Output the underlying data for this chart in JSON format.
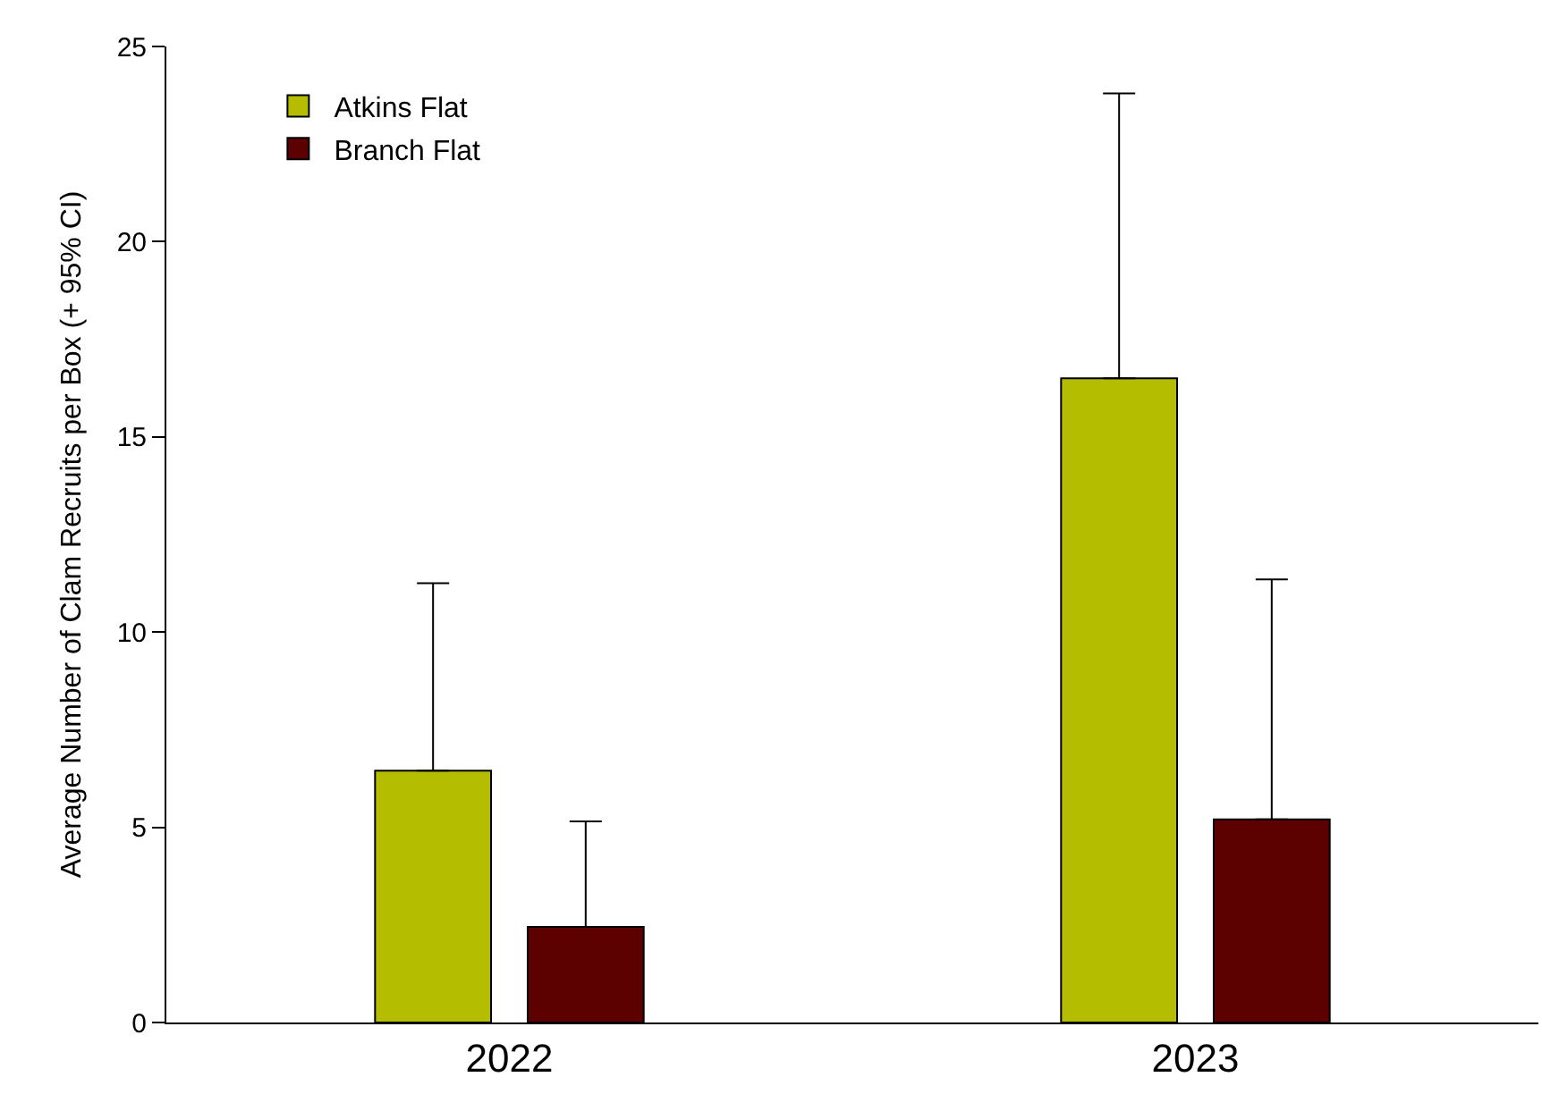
{
  "chart_data": {
    "type": "bar",
    "ylabel": "Average Number of Clam Recruits per Box (+ 95% CI)",
    "categories": [
      "2022",
      "2023"
    ],
    "series": [
      {
        "name": "Atkins Flat",
        "color": "#b5bd00",
        "values": [
          6.45,
          16.5
        ],
        "errors": [
          [
            6.45,
            11.25
          ],
          [
            16.5,
            23.8
          ]
        ]
      },
      {
        "name": "Branch Flat",
        "color": "#5c0000",
        "values": [
          2.45,
          5.2
        ],
        "errors": [
          [
            2.45,
            5.15
          ],
          [
            5.2,
            11.35
          ]
        ]
      }
    ],
    "ylim": [
      0,
      25
    ],
    "yticks": [
      0,
      5,
      10,
      15,
      20,
      25
    ],
    "legend": "top left"
  }
}
